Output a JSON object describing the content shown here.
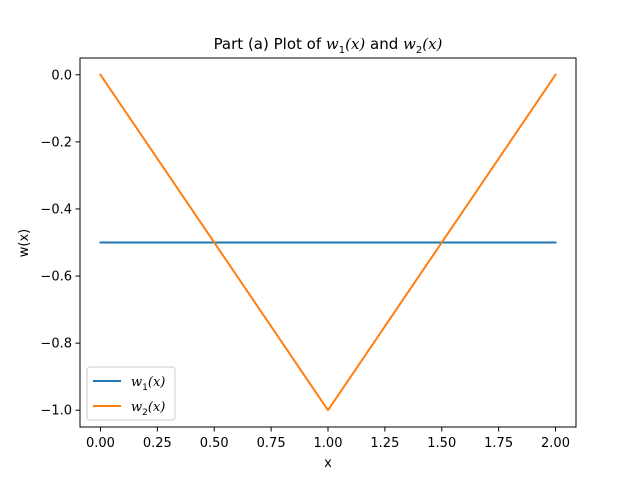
{
  "chart_data": {
    "type": "line",
    "title": {
      "prefix": "Part (a) Plot of ",
      "conj": " and ",
      "math1": {
        "base": "w",
        "sub": "1",
        "arg": "(x)"
      },
      "math2": {
        "base": "w",
        "sub": "2",
        "arg": "(x)"
      }
    },
    "xlabel": "x",
    "ylabel": "w(x)",
    "xlim": [
      -0.09,
      2.09
    ],
    "ylim": [
      -1.05,
      0.05
    ],
    "xticks": [
      0.0,
      0.25,
      0.5,
      0.75,
      1.0,
      1.25,
      1.5,
      1.75,
      2.0
    ],
    "xtick_labels": [
      "0.00",
      "0.25",
      "0.50",
      "0.75",
      "1.00",
      "1.25",
      "1.50",
      "1.75",
      "2.00"
    ],
    "yticks": [
      0.0,
      -0.2,
      -0.4,
      -0.6,
      -0.8,
      -1.0
    ],
    "ytick_labels": [
      "0.0",
      "−0.2",
      "−0.4",
      "−0.6",
      "−0.8",
      "−1.0"
    ],
    "grid": false,
    "legend_position": "lower-left",
    "series": [
      {
        "label": {
          "base": "w",
          "sub": "1",
          "arg": "(x)"
        },
        "color": "#1f77b4",
        "x": [
          0.0,
          2.0
        ],
        "y": [
          -0.5,
          -0.5
        ]
      },
      {
        "label": {
          "base": "w",
          "sub": "2",
          "arg": "(x)"
        },
        "color": "#ff7f0e",
        "x": [
          0.0,
          1.0,
          2.0
        ],
        "y": [
          0.0,
          -1.0,
          0.0
        ]
      }
    ]
  }
}
